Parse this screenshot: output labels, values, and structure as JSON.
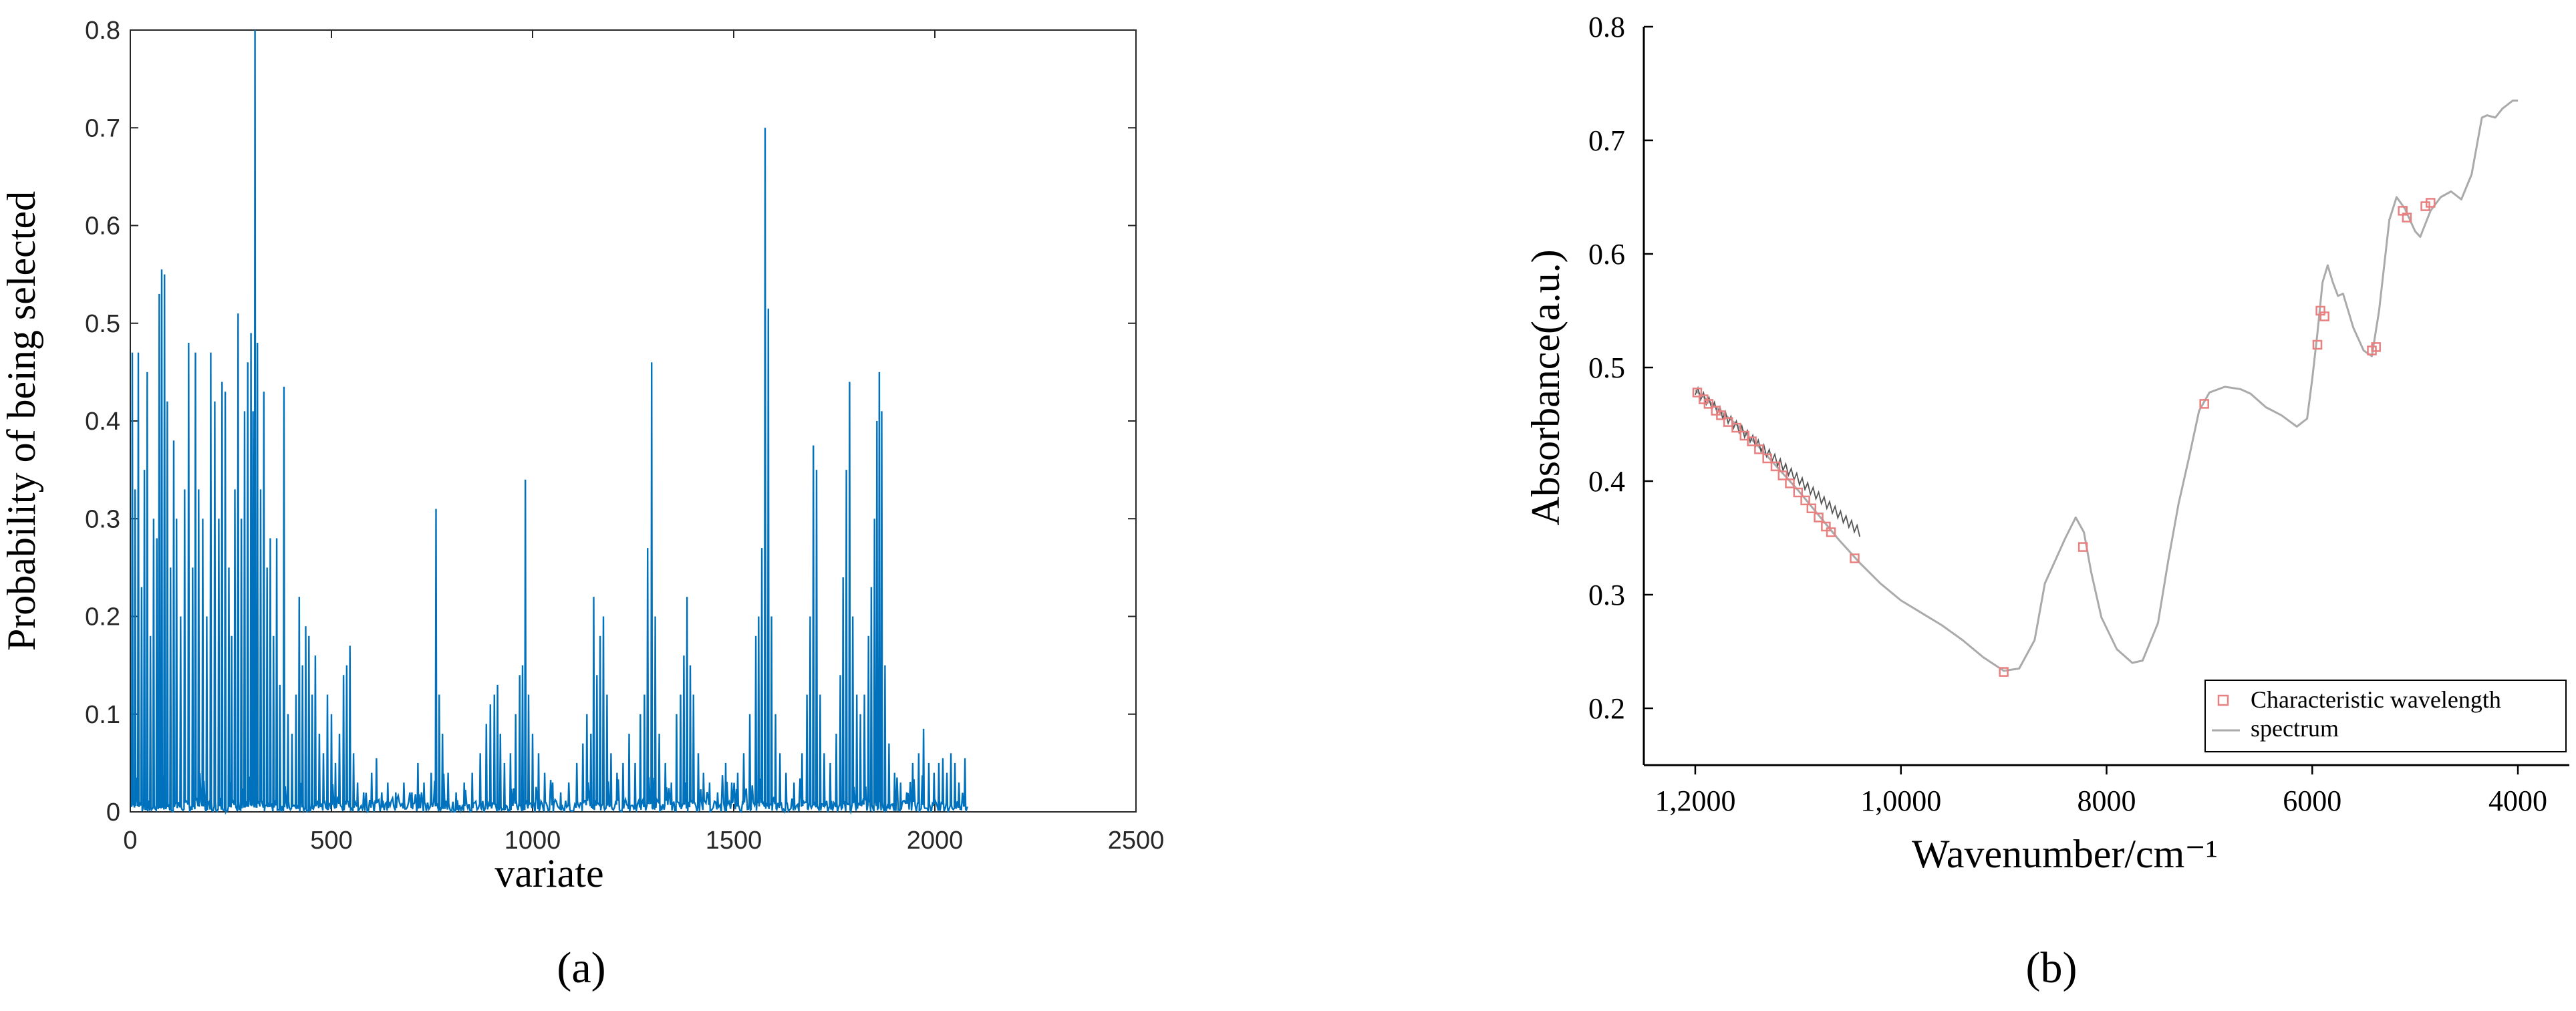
{
  "panel_labels": {
    "a": "(a)",
    "b": "(b)"
  },
  "chart_data": [
    {
      "type": "line",
      "panel": "a",
      "xlabel": "variate",
      "ylabel": "Probability of being selected",
      "xlim": [
        0,
        2500
      ],
      "ylim": [
        0,
        0.8
      ],
      "xticks": [
        0,
        500,
        1000,
        1500,
        2000,
        2500
      ],
      "xtick_labels": [
        "0",
        "500",
        "1000",
        "1500",
        "2000",
        "2500"
      ],
      "yticks": [
        0,
        0.1,
        0.2,
        0.3,
        0.4,
        0.5,
        0.6,
        0.7,
        0.8
      ],
      "ytick_labels": [
        "0",
        "0.1",
        "0.2",
        "0.3",
        "0.4",
        "0.5",
        "0.6",
        "0.7",
        "0.8"
      ],
      "series_color": "#0072BD",
      "peaks": [
        [
          5,
          0.47
        ],
        [
          12,
          0.33
        ],
        [
          20,
          0.47
        ],
        [
          28,
          0.23
        ],
        [
          35,
          0.35
        ],
        [
          42,
          0.45
        ],
        [
          50,
          0.18
        ],
        [
          58,
          0.3
        ],
        [
          66,
          0.28
        ],
        [
          72,
          0.53
        ],
        [
          78,
          0.555
        ],
        [
          85,
          0.55
        ],
        [
          92,
          0.42
        ],
        [
          100,
          0.25
        ],
        [
          108,
          0.38
        ],
        [
          115,
          0.3
        ],
        [
          125,
          0.2
        ],
        [
          135,
          0.33
        ],
        [
          145,
          0.48
        ],
        [
          155,
          0.25
        ],
        [
          162,
          0.47
        ],
        [
          170,
          0.33
        ],
        [
          180,
          0.3
        ],
        [
          190,
          0.2
        ],
        [
          200,
          0.47
        ],
        [
          210,
          0.42
        ],
        [
          220,
          0.3
        ],
        [
          228,
          0.44
        ],
        [
          236,
          0.43
        ],
        [
          245,
          0.25
        ],
        [
          252,
          0.18
        ],
        [
          260,
          0.33
        ],
        [
          268,
          0.51
        ],
        [
          276,
          0.3
        ],
        [
          284,
          0.41
        ],
        [
          292,
          0.46
        ],
        [
          300,
          0.49
        ],
        [
          305,
          0.41
        ],
        [
          310,
          0.8
        ],
        [
          316,
          0.48
        ],
        [
          324,
          0.33
        ],
        [
          332,
          0.43
        ],
        [
          340,
          0.25
        ],
        [
          348,
          0.28
        ],
        [
          356,
          0.18
        ],
        [
          364,
          0.28
        ],
        [
          372,
          0.13
        ],
        [
          382,
          0.435
        ],
        [
          392,
          0.1
        ],
        [
          402,
          0.08
        ],
        [
          412,
          0.12
        ],
        [
          420,
          0.22
        ],
        [
          428,
          0.15
        ],
        [
          436,
          0.19
        ],
        [
          444,
          0.18
        ],
        [
          452,
          0.12
        ],
        [
          460,
          0.16
        ],
        [
          470,
          0.08
        ],
        [
          480,
          0.06
        ],
        [
          490,
          0.12
        ],
        [
          500,
          0.1
        ],
        [
          510,
          0.05
        ],
        [
          520,
          0.08
        ],
        [
          530,
          0.14
        ],
        [
          538,
          0.15
        ],
        [
          546,
          0.17
        ],
        [
          555,
          0.06
        ],
        [
          565,
          0.03
        ],
        [
          580,
          0.02
        ],
        [
          600,
          0.04
        ],
        [
          612,
          0.055
        ],
        [
          625,
          0.02
        ],
        [
          640,
          0.03
        ],
        [
          660,
          0.02
        ],
        [
          680,
          0.03
        ],
        [
          700,
          0.02
        ],
        [
          715,
          0.05
        ],
        [
          730,
          0.03
        ],
        [
          748,
          0.04
        ],
        [
          760,
          0.31
        ],
        [
          768,
          0.12
        ],
        [
          776,
          0.08
        ],
        [
          790,
          0.04
        ],
        [
          810,
          0.02
        ],
        [
          830,
          0.03
        ],
        [
          850,
          0.04
        ],
        [
          870,
          0.06
        ],
        [
          885,
          0.09
        ],
        [
          895,
          0.11
        ],
        [
          905,
          0.12
        ],
        [
          913,
          0.13
        ],
        [
          920,
          0.08
        ],
        [
          930,
          0.05
        ],
        [
          945,
          0.06
        ],
        [
          958,
          0.1
        ],
        [
          968,
          0.14
        ],
        [
          975,
          0.15
        ],
        [
          982,
          0.34
        ],
        [
          990,
          0.12
        ],
        [
          1000,
          0.08
        ],
        [
          1015,
          0.06
        ],
        [
          1030,
          0.04
        ],
        [
          1050,
          0.03
        ],
        [
          1070,
          0.02
        ],
        [
          1090,
          0.03
        ],
        [
          1110,
          0.05
        ],
        [
          1125,
          0.07
        ],
        [
          1135,
          0.1
        ],
        [
          1145,
          0.08
        ],
        [
          1152,
          0.22
        ],
        [
          1160,
          0.14
        ],
        [
          1168,
          0.18
        ],
        [
          1176,
          0.2
        ],
        [
          1185,
          0.12
        ],
        [
          1195,
          0.06
        ],
        [
          1210,
          0.04
        ],
        [
          1225,
          0.05
        ],
        [
          1240,
          0.08
        ],
        [
          1255,
          0.05
        ],
        [
          1268,
          0.1
        ],
        [
          1278,
          0.12
        ],
        [
          1286,
          0.27
        ],
        [
          1296,
          0.46
        ],
        [
          1305,
          0.2
        ],
        [
          1315,
          0.08
        ],
        [
          1330,
          0.05
        ],
        [
          1345,
          0.03
        ],
        [
          1358,
          0.1
        ],
        [
          1368,
          0.12
        ],
        [
          1376,
          0.16
        ],
        [
          1384,
          0.22
        ],
        [
          1392,
          0.15
        ],
        [
          1400,
          0.12
        ],
        [
          1412,
          0.06
        ],
        [
          1425,
          0.04
        ],
        [
          1440,
          0.03
        ],
        [
          1460,
          0.02
        ],
        [
          1480,
          0.05
        ],
        [
          1495,
          0.03
        ],
        [
          1510,
          0.04
        ],
        [
          1525,
          0.06
        ],
        [
          1540,
          0.1
        ],
        [
          1555,
          0.18
        ],
        [
          1562,
          0.2
        ],
        [
          1570,
          0.27
        ],
        [
          1578,
          0.7
        ],
        [
          1586,
          0.515
        ],
        [
          1594,
          0.2
        ],
        [
          1604,
          0.1
        ],
        [
          1615,
          0.06
        ],
        [
          1630,
          0.04
        ],
        [
          1650,
          0.03
        ],
        [
          1670,
          0.06
        ],
        [
          1682,
          0.12
        ],
        [
          1690,
          0.2
        ],
        [
          1698,
          0.375
        ],
        [
          1706,
          0.35
        ],
        [
          1715,
          0.12
        ],
        [
          1725,
          0.06
        ],
        [
          1740,
          0.05
        ],
        [
          1755,
          0.08
        ],
        [
          1765,
          0.14
        ],
        [
          1772,
          0.24
        ],
        [
          1780,
          0.35
        ],
        [
          1788,
          0.44
        ],
        [
          1796,
          0.2
        ],
        [
          1806,
          0.12
        ],
        [
          1815,
          0.1
        ],
        [
          1825,
          0.12
        ],
        [
          1835,
          0.18
        ],
        [
          1842,
          0.23
        ],
        [
          1850,
          0.3
        ],
        [
          1856,
          0.4
        ],
        [
          1862,
          0.45
        ],
        [
          1868,
          0.41
        ],
        [
          1876,
          0.15
        ],
        [
          1886,
          0.07
        ],
        [
          1900,
          0.04
        ],
        [
          1915,
          0.03
        ],
        [
          1930,
          0.02
        ],
        [
          1945,
          0.05
        ],
        [
          1960,
          0.06
        ],
        [
          1972,
          0.085
        ],
        [
          1985,
          0.05
        ],
        [
          1998,
          0.04
        ],
        [
          2010,
          0.05
        ],
        [
          2020,
          0.055
        ],
        [
          2030,
          0.04
        ],
        [
          2040,
          0.06
        ],
        [
          2050,
          0.05
        ],
        [
          2060,
          0.03
        ],
        [
          2075,
          0.055
        ]
      ]
    },
    {
      "type": "line",
      "panel": "b",
      "xlabel": "Wavenumber/cm⁻¹",
      "ylabel": "Absorbance(a.u.)",
      "xlim": [
        12500,
        3500
      ],
      "ylim": [
        0.15,
        0.8
      ],
      "xticks": [
        12000,
        10000,
        8000,
        6000,
        4000
      ],
      "xtick_labels": [
        "1,2000",
        "1,0000",
        "8000",
        "6000",
        "4000"
      ],
      "yticks": [
        0.2,
        0.3,
        0.4,
        0.5,
        0.6,
        0.7,
        0.8
      ],
      "ytick_labels": [
        "0.2",
        "0.3",
        "0.4",
        "0.5",
        "0.6",
        "0.7",
        "0.8"
      ],
      "legend": {
        "position": "bottom-right",
        "entries": [
          "Characteristic wavelength",
          "spectrum"
        ]
      },
      "spectrum_color": "#aaaaaa",
      "marker_color": "#e88080",
      "spectrum": [
        [
          12000,
          0.48
        ],
        [
          11800,
          0.465
        ],
        [
          11600,
          0.45
        ],
        [
          11400,
          0.432
        ],
        [
          11200,
          0.412
        ],
        [
          11000,
          0.392
        ],
        [
          10800,
          0.37
        ],
        [
          10600,
          0.348
        ],
        [
          10400,
          0.328
        ],
        [
          10200,
          0.31
        ],
        [
          10000,
          0.295
        ],
        [
          9800,
          0.284
        ],
        [
          9600,
          0.273
        ],
        [
          9400,
          0.26
        ],
        [
          9200,
          0.245
        ],
        [
          9000,
          0.233
        ],
        [
          8850,
          0.235
        ],
        [
          8700,
          0.26
        ],
        [
          8600,
          0.31
        ],
        [
          8500,
          0.33
        ],
        [
          8400,
          0.35
        ],
        [
          8300,
          0.368
        ],
        [
          8220,
          0.355
        ],
        [
          8150,
          0.32
        ],
        [
          8050,
          0.28
        ],
        [
          7900,
          0.252
        ],
        [
          7750,
          0.24
        ],
        [
          7650,
          0.242
        ],
        [
          7500,
          0.275
        ],
        [
          7400,
          0.33
        ],
        [
          7300,
          0.38
        ],
        [
          7200,
          0.42
        ],
        [
          7100,
          0.462
        ],
        [
          7000,
          0.478
        ],
        [
          6850,
          0.483
        ],
        [
          6700,
          0.481
        ],
        [
          6600,
          0.477
        ],
        [
          6450,
          0.465
        ],
        [
          6300,
          0.458
        ],
        [
          6150,
          0.448
        ],
        [
          6050,
          0.455
        ],
        [
          6000,
          0.49
        ],
        [
          5950,
          0.53
        ],
        [
          5900,
          0.575
        ],
        [
          5850,
          0.59
        ],
        [
          5800,
          0.575
        ],
        [
          5750,
          0.563
        ],
        [
          5700,
          0.565
        ],
        [
          5600,
          0.535
        ],
        [
          5500,
          0.515
        ],
        [
          5420,
          0.51
        ],
        [
          5350,
          0.55
        ],
        [
          5250,
          0.63
        ],
        [
          5180,
          0.65
        ],
        [
          5100,
          0.64
        ],
        [
          5000,
          0.62
        ],
        [
          4950,
          0.615
        ],
        [
          4850,
          0.638
        ],
        [
          4750,
          0.65
        ],
        [
          4650,
          0.655
        ],
        [
          4550,
          0.648
        ],
        [
          4450,
          0.67
        ],
        [
          4350,
          0.72
        ],
        [
          4300,
          0.722
        ],
        [
          4220,
          0.72
        ],
        [
          4150,
          0.728
        ],
        [
          4050,
          0.735
        ],
        [
          4000,
          0.735
        ]
      ],
      "characteristic_wavelengths": [
        [
          11980,
          0.478
        ],
        [
          11920,
          0.472
        ],
        [
          11870,
          0.468
        ],
        [
          11800,
          0.462
        ],
        [
          11750,
          0.458
        ],
        [
          11680,
          0.452
        ],
        [
          11600,
          0.447
        ],
        [
          11520,
          0.44
        ],
        [
          11450,
          0.435
        ],
        [
          11380,
          0.428
        ],
        [
          11300,
          0.42
        ],
        [
          11220,
          0.413
        ],
        [
          11150,
          0.405
        ],
        [
          11080,
          0.398
        ],
        [
          11000,
          0.39
        ],
        [
          10930,
          0.383
        ],
        [
          10870,
          0.376
        ],
        [
          10800,
          0.368
        ],
        [
          10730,
          0.36
        ],
        [
          10680,
          0.355
        ],
        [
          10450,
          0.332
        ],
        [
          9000,
          0.232
        ],
        [
          8230,
          0.342
        ],
        [
          7050,
          0.468
        ],
        [
          5950,
          0.52
        ],
        [
          5920,
          0.55
        ],
        [
          5880,
          0.545
        ],
        [
          5420,
          0.515
        ],
        [
          5380,
          0.518
        ],
        [
          5120,
          0.638
        ],
        [
          5080,
          0.632
        ],
        [
          4900,
          0.642
        ],
        [
          4850,
          0.645
        ]
      ]
    }
  ]
}
